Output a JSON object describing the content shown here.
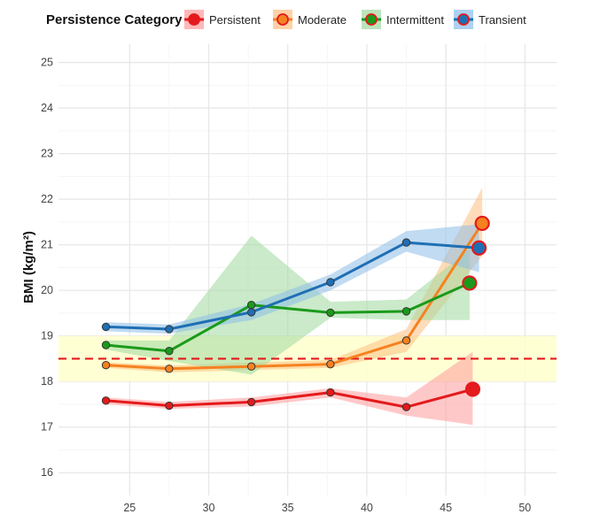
{
  "chart_data": {
    "type": "line",
    "title": "",
    "xlabel": "",
    "ylabel": "BMI (kg/m²)",
    "xlim": [
      20.5,
      52
    ],
    "ylim": [
      15.5,
      25.4
    ],
    "xticks": [
      25,
      30,
      35,
      40,
      45,
      50
    ],
    "yticks": [
      16,
      17,
      18,
      19,
      20,
      21,
      22,
      23,
      24,
      25
    ],
    "grid": true,
    "legend": {
      "title": "Persistence Category",
      "position": "top"
    },
    "reference_line": {
      "y": 18.5,
      "style": "dashed",
      "color": "#e41a1c"
    },
    "reference_band": {
      "ymin": 18.0,
      "ymax": 19.0,
      "color": "#ffffcc"
    },
    "series": [
      {
        "name": "Persistent",
        "color": "#e41a1c",
        "band_color": "#ff9a9a",
        "x": [
          23.5,
          27.5,
          32.7,
          37.7,
          42.5,
          46.7
        ],
        "y": [
          17.58,
          17.47,
          17.55,
          17.76,
          17.44,
          17.83
        ],
        "lower": [
          17.5,
          17.4,
          17.45,
          17.65,
          17.25,
          17.05
        ],
        "upper": [
          17.65,
          17.55,
          17.65,
          17.85,
          17.65,
          18.65
        ]
      },
      {
        "name": "Moderate",
        "color": "#f58220",
        "band_color": "#fdbf80",
        "x": [
          23.5,
          27.5,
          32.7,
          37.7,
          42.5,
          47.3
        ],
        "y": [
          18.36,
          18.28,
          18.33,
          18.38,
          18.9,
          21.47
        ],
        "lower": [
          18.3,
          18.2,
          18.25,
          18.3,
          18.65,
          20.75
        ],
        "upper": [
          18.42,
          18.35,
          18.42,
          18.47,
          19.15,
          22.25
        ]
      },
      {
        "name": "Intermittent",
        "color": "#1a9a1a",
        "band_color": "#9fd89f",
        "x": [
          23.5,
          27.5,
          32.7,
          37.7,
          42.5,
          46.5
        ],
        "y": [
          18.8,
          18.67,
          19.68,
          19.51,
          19.54,
          20.16
        ],
        "lower": [
          18.7,
          18.45,
          18.15,
          19.4,
          19.35,
          19.35
        ],
        "upper": [
          18.9,
          18.9,
          21.2,
          19.75,
          19.8,
          20.9
        ]
      },
      {
        "name": "Transient",
        "color": "#1f6fb4",
        "band_color": "#8cbde8",
        "x": [
          23.5,
          27.5,
          32.7,
          37.7,
          42.5,
          47.1
        ],
        "y": [
          19.2,
          19.15,
          19.52,
          20.18,
          21.05,
          20.93
        ],
        "lower": [
          19.1,
          19.05,
          19.35,
          20.0,
          20.85,
          20.4
        ],
        "upper": [
          19.3,
          19.25,
          19.7,
          20.35,
          21.3,
          21.45
        ]
      }
    ]
  }
}
